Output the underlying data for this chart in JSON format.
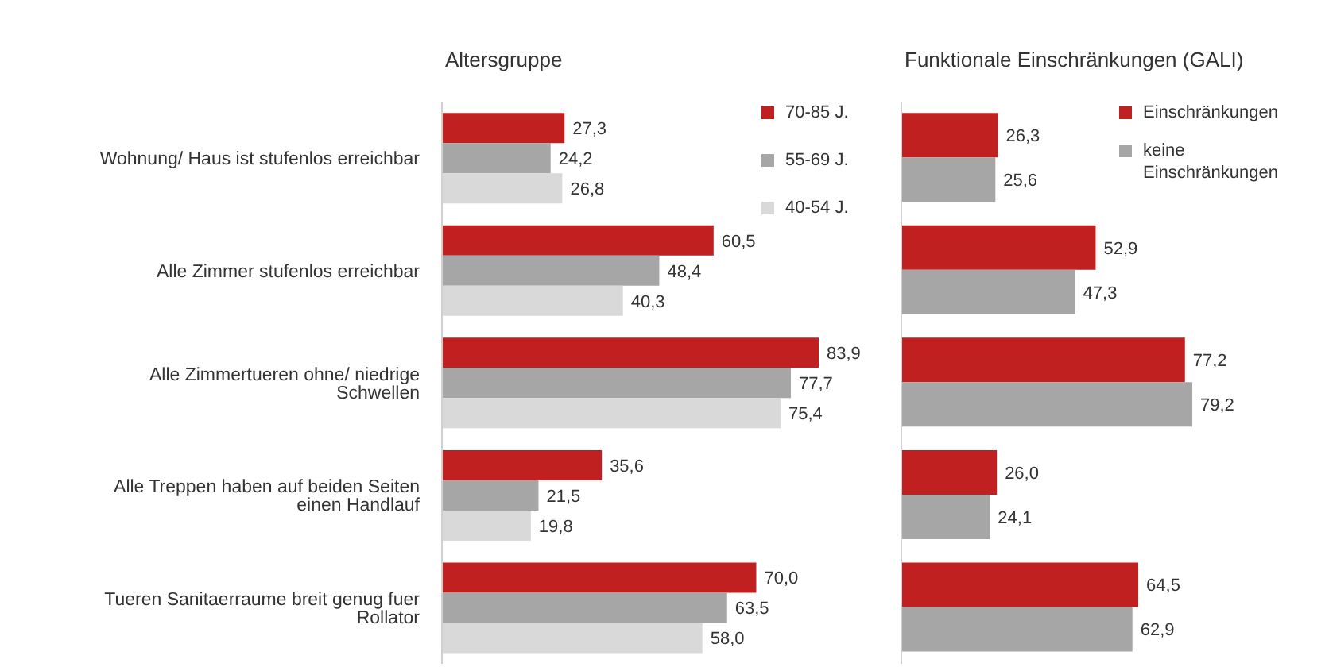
{
  "chart_data": [
    {
      "type": "bar",
      "orientation": "horizontal",
      "title": "Altersgruppe",
      "categories": [
        "Wohnung/ Haus ist stufenlos erreichbar",
        "Alle Zimmer stufenlos erreichbar",
        "Alle Zimmertueren ohne/ niedrige Schwellen",
        "Alle Treppen haben auf beiden Seiten einen Handlauf",
        "Tueren Sanitaerraume breit genug fuer Rollator"
      ],
      "series": [
        {
          "name": "70-85 J.",
          "color": "#c0201f",
          "values": [
            27.3,
            60.5,
            83.9,
            35.6,
            70.0
          ],
          "value_labels": [
            "27,3",
            "60,5",
            "83,9",
            "35,6",
            "70,0"
          ]
        },
        {
          "name": "55-69 J.",
          "color": "#a6a6a6",
          "values": [
            24.2,
            48.4,
            77.7,
            21.5,
            63.5
          ],
          "value_labels": [
            "24,2",
            "48,4",
            "77,7",
            "21,5",
            "63,5"
          ]
        },
        {
          "name": "40-54 J.",
          "color": "#d9d9d9",
          "values": [
            26.8,
            40.3,
            75.4,
            19.8,
            58.0
          ],
          "value_labels": [
            "26,8",
            "40,3",
            "75,4",
            "19,8",
            "58,0"
          ]
        }
      ],
      "legend": "top right",
      "grid": false
    },
    {
      "type": "bar",
      "orientation": "horizontal",
      "title": "Funktionale Einschränkungen (GALI)",
      "categories": [
        null,
        null,
        null,
        null,
        null
      ],
      "series": [
        {
          "name": "Einschränkungen",
          "color": "#c0201f",
          "values": [
            26.3,
            52.9,
            77.2,
            26.0,
            64.5
          ],
          "value_labels": [
            "26,3",
            "52,9",
            "77,2",
            "26,0",
            "64,5"
          ]
        },
        {
          "name": "keine Einschränkungen",
          "color": "#a6a6a6",
          "values": [
            25.6,
            47.3,
            79.2,
            24.1,
            62.9
          ],
          "value_labels": [
            "25,6",
            "47,3",
            "79,2",
            "24,1",
            "62,9"
          ]
        }
      ],
      "legend": "top right",
      "grid": false,
      "tick_labels": false
    }
  ]
}
